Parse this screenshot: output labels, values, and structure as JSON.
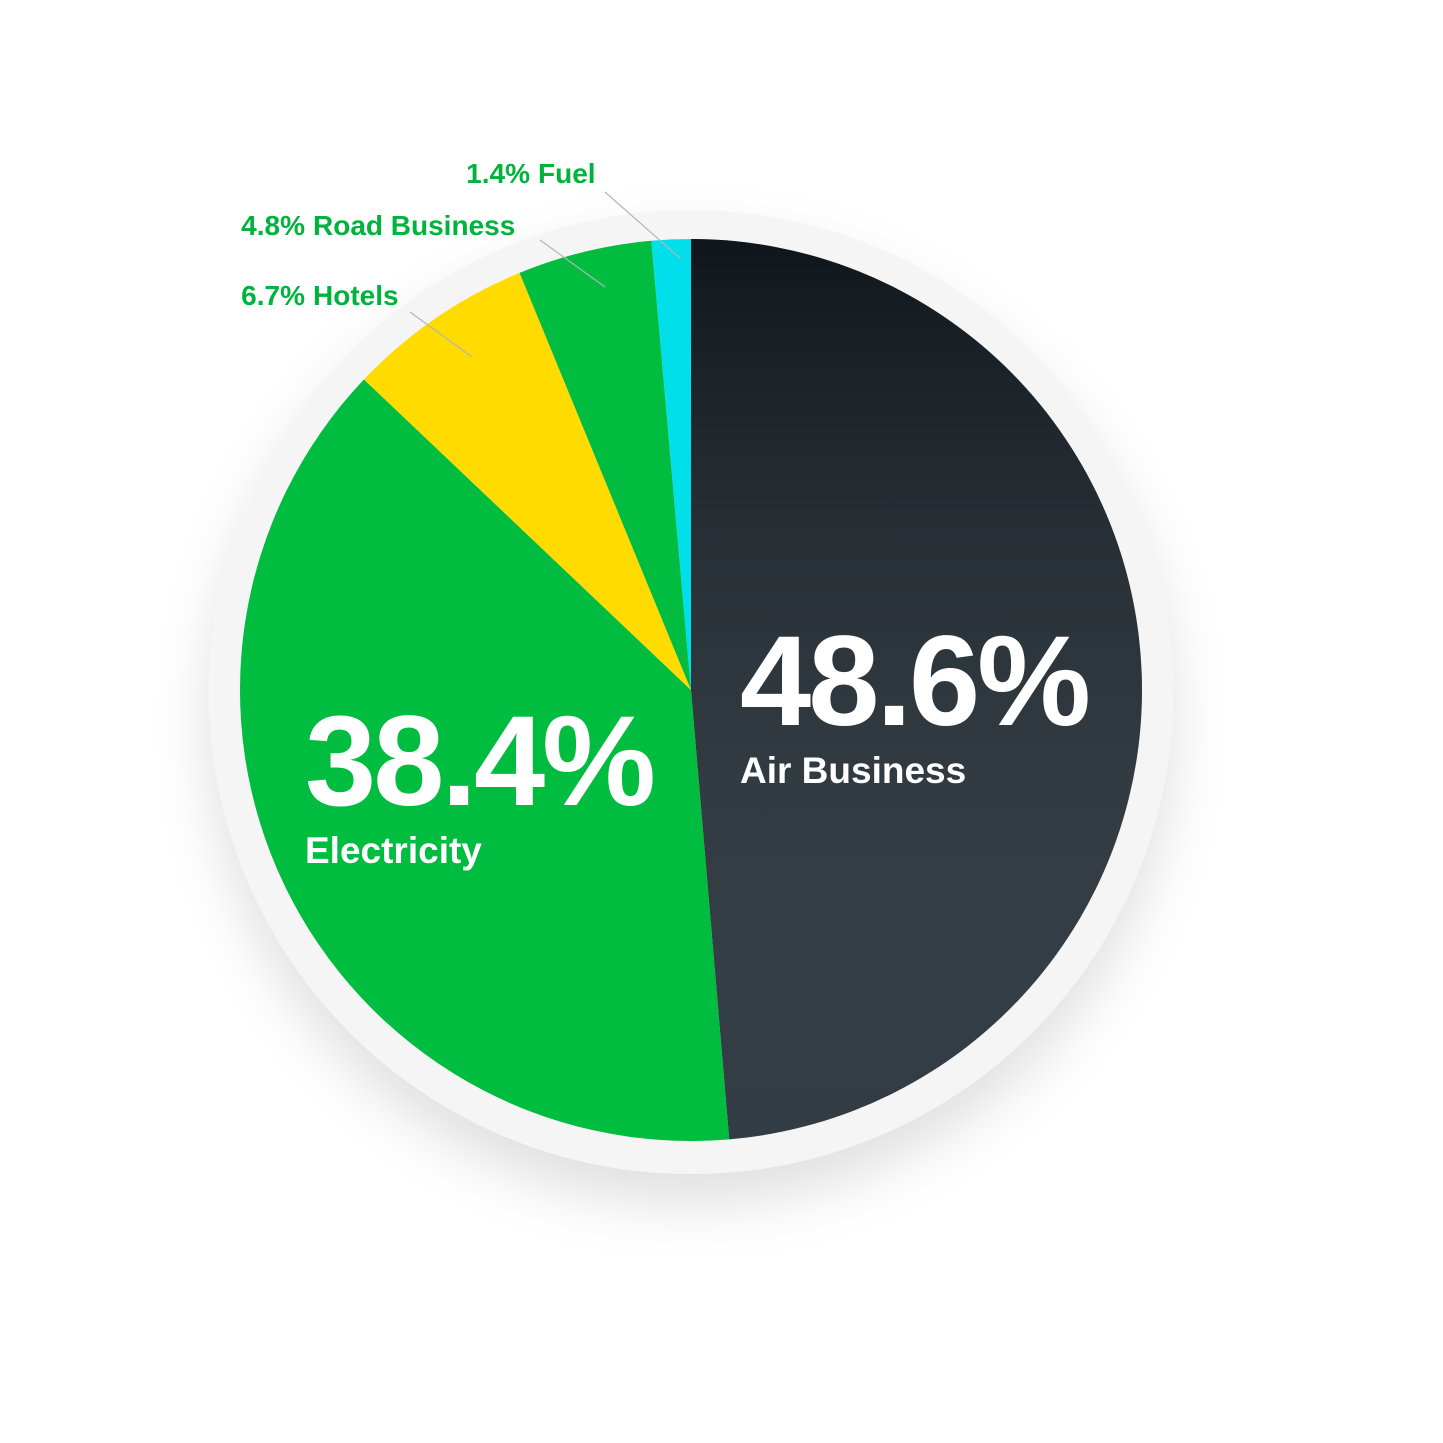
{
  "chart_data": {
    "type": "pie",
    "categories": [
      "Air Business",
      "Electricity",
      "Hotels",
      "Road Business",
      "Fuel"
    ],
    "values": [
      48.6,
      38.4,
      6.7,
      4.8,
      1.4
    ],
    "value_labels": [
      "48.6%",
      "38.4%",
      "6.7%",
      "4.8%",
      "1.4%"
    ],
    "colors": [
      "#16212a",
      "#00bc3f",
      "#ffdb00",
      "#00bc3f",
      "#00dfea"
    ]
  }
}
